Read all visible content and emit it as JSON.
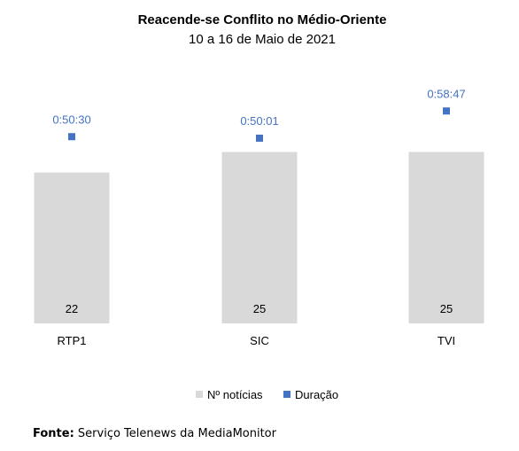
{
  "chart_data": {
    "type": "bar",
    "title": "Reacende-se Conflito no Médio-Oriente",
    "subtitle": "10 a 16 de Maio de 2021",
    "categories": [
      "RTP1",
      "SIC",
      "TVI"
    ],
    "series": [
      {
        "name": "Nº notícias",
        "kind": "bar",
        "color": "#d9d9d9",
        "values": [
          22,
          25,
          25
        ],
        "labels": [
          "22",
          "25",
          "25"
        ]
      },
      {
        "name": "Duração",
        "kind": "marker",
        "color": "#4472c4",
        "values": [
          50.5,
          50.0167,
          58.7833
        ],
        "labels": [
          "0:50:30",
          "0:50:01",
          "0:58:47"
        ]
      }
    ],
    "legend_position": "bottom",
    "grid": false
  },
  "source": {
    "label": "Fonte:",
    "text": "Serviço Telenews da MediaMonitor"
  },
  "colors": {
    "bar": "#d9d9d9",
    "marker": "#4472c4",
    "marker_label": "#4472c4",
    "text": "#000000"
  }
}
